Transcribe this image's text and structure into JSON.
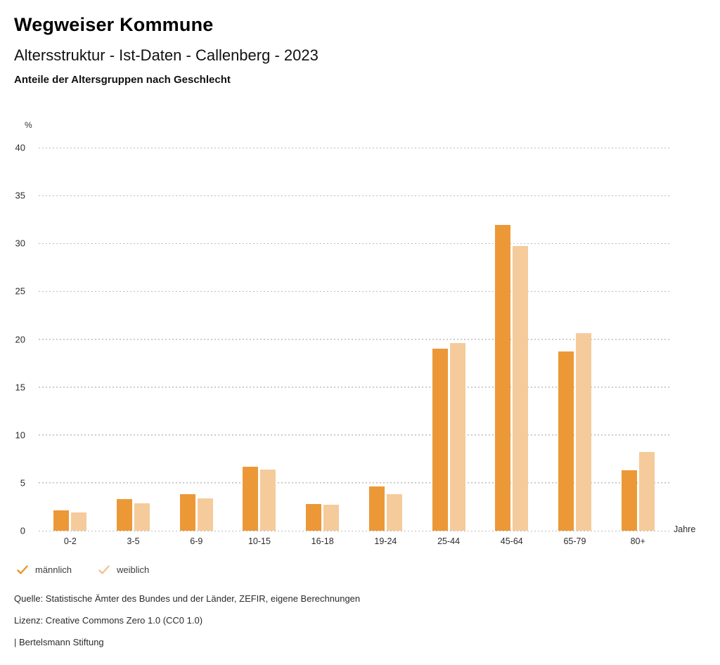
{
  "header": {
    "title": "Wegweiser Kommune",
    "subtitle": "Altersstruktur - Ist-Daten - Callenberg - 2023",
    "caption": "Anteile der Altersgruppen nach Geschlecht"
  },
  "chart_data": {
    "type": "bar",
    "title": "Anteile der Altersgruppen nach Geschlecht",
    "categories": [
      "0-2",
      "3-5",
      "6-9",
      "10-15",
      "16-18",
      "19-24",
      "25-44",
      "45-64",
      "65-79",
      "80+"
    ],
    "series": [
      {
        "name": "männlich",
        "color": "#EC9837",
        "values": [
          2.1,
          3.3,
          3.8,
          6.7,
          2.8,
          4.6,
          19.0,
          31.9,
          18.7,
          6.3
        ]
      },
      {
        "name": "weiblich",
        "color": "#F5CB9B",
        "values": [
          1.9,
          2.9,
          3.4,
          6.4,
          2.7,
          3.8,
          19.6,
          29.7,
          20.6,
          8.2
        ]
      }
    ],
    "xlabel": "Jahre",
    "ylabel": "%",
    "ylim": [
      0,
      40
    ],
    "ytick_step": 5,
    "grid": "horizontal-dotted",
    "gridline_color": "#bcbcbc",
    "legend_position": "bottom-left"
  },
  "legend": {
    "items": [
      {
        "label": "männlich",
        "check_color": "#E8962F",
        "checked": true
      },
      {
        "label": "weiblich",
        "check_color": "#F2C38F",
        "checked": true
      }
    ]
  },
  "footer": {
    "source": "Quelle: Statistische Ämter des Bundes und der Länder, ZEFIR, eigene Berechnungen",
    "license": "Lizenz: Creative Commons Zero 1.0 (CC0 1.0)",
    "attribution": "| Bertelsmann Stiftung"
  }
}
